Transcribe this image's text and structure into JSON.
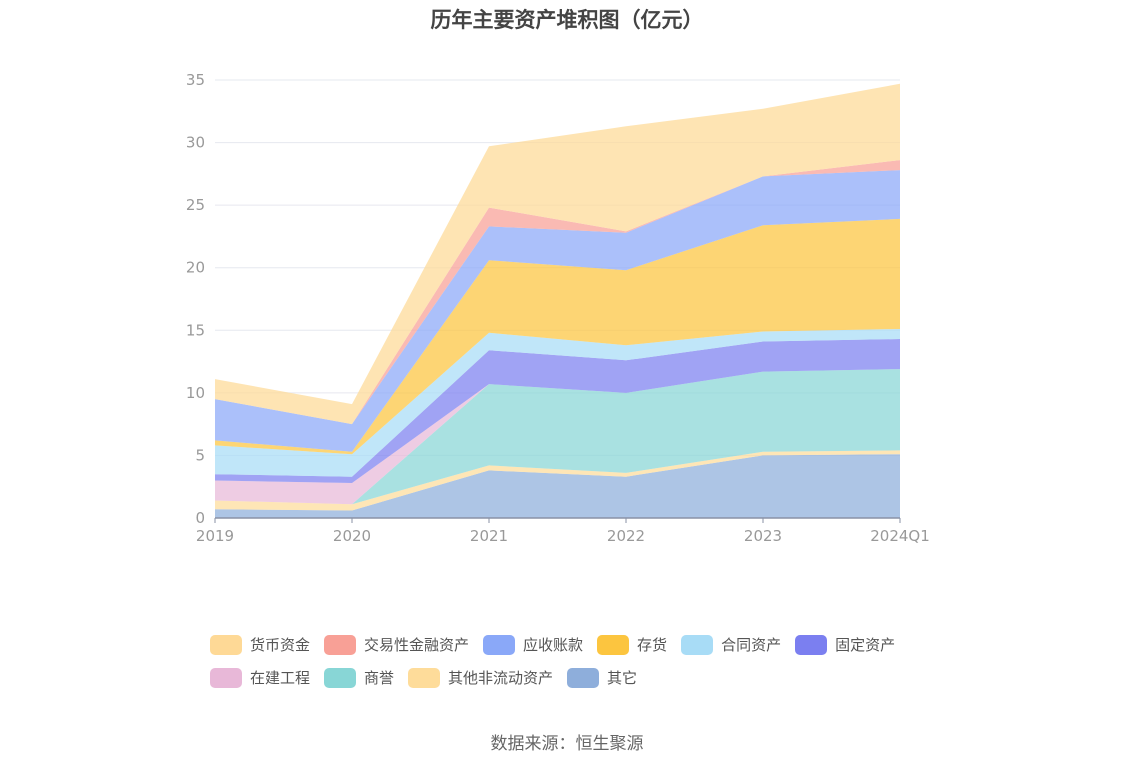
{
  "chart_data": {
    "type": "area",
    "stacked": true,
    "title": "历年主要资产堆积图（亿元）",
    "categories": [
      "2019",
      "2020",
      "2021",
      "2022",
      "2023",
      "2024Q1"
    ],
    "ylim": [
      0,
      35
    ],
    "yticks": [
      0,
      5,
      10,
      15,
      20,
      25,
      30,
      35
    ],
    "grid": true,
    "legend_position": "bottom",
    "series": [
      {
        "name": "其它",
        "color": "#8eaedb",
        "values": [
          0.7,
          0.6,
          3.8,
          3.3,
          5.0,
          5.1
        ]
      },
      {
        "name": "其他非流动资产",
        "color": "#fedc9a",
        "values": [
          0.7,
          0.5,
          0.4,
          0.3,
          0.3,
          0.3
        ]
      },
      {
        "name": "商誉",
        "color": "#88d6d6",
        "values": [
          0.0,
          0.0,
          6.5,
          6.4,
          6.4,
          6.5
        ]
      },
      {
        "name": "在建工程",
        "color": "#e8b8d8",
        "values": [
          1.6,
          1.7,
          0.0,
          0.0,
          0.0,
          0.0
        ]
      },
      {
        "name": "固定资产",
        "color": "#7b7ff0",
        "values": [
          0.5,
          0.5,
          2.7,
          2.6,
          2.4,
          2.4
        ]
      },
      {
        "name": "合同资产",
        "color": "#a8dcf6",
        "values": [
          2.3,
          1.8,
          1.4,
          1.2,
          0.8,
          0.8
        ]
      },
      {
        "name": "存货",
        "color": "#fcc53f",
        "values": [
          0.4,
          0.2,
          5.8,
          6.0,
          8.5,
          8.8
        ]
      },
      {
        "name": "应收账款",
        "color": "#8aa8f8",
        "values": [
          3.3,
          2.2,
          2.7,
          3.0,
          3.9,
          3.9
        ]
      },
      {
        "name": "交易性金融资产",
        "color": "#f8a096",
        "values": [
          0.0,
          0.0,
          1.5,
          0.1,
          0.0,
          0.8
        ]
      },
      {
        "name": "货币资金",
        "color": "#fed996",
        "values": [
          1.6,
          1.6,
          4.9,
          8.4,
          5.4,
          6.1
        ]
      }
    ],
    "legend_order": [
      "货币资金",
      "交易性金融资产",
      "应收账款",
      "存货",
      "合同资产",
      "固定资产",
      "在建工程",
      "商誉",
      "其他非流动资产",
      "其它"
    ],
    "source": "数据来源：恒生聚源"
  }
}
